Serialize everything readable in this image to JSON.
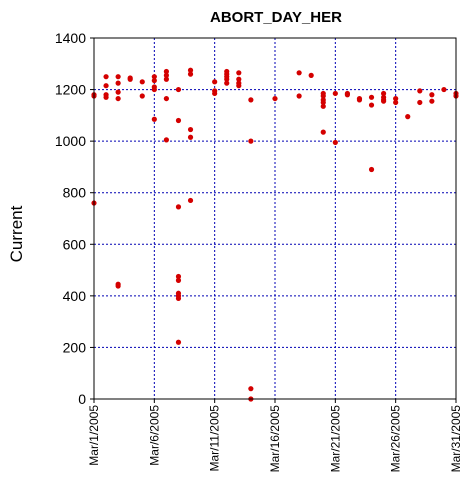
{
  "chart_data": {
    "type": "scatter",
    "title": "ABORT_DAY_HER",
    "xlabel": "",
    "ylabel": "Current",
    "ylim": [
      0,
      1400
    ],
    "yticks": [
      "0",
      "200",
      "400",
      "600",
      "800",
      "1000",
      "1200",
      "1400"
    ],
    "xlim": [
      "2005-03-01",
      "2005-03-31"
    ],
    "xticks": [
      "Mar/1/2005",
      "Mar/6/2005",
      "Mar/11/2005",
      "Mar/16/2005",
      "Mar/21/2005",
      "Mar/26/2005",
      "Mar/31/2005"
    ],
    "grid": true,
    "point_color": "#d40000",
    "grid_color": "#0000b4",
    "points": [
      {
        "x": "2005-03-01",
        "y": 760
      },
      {
        "x": "2005-03-01",
        "y": 1175
      },
      {
        "x": "2005-03-01",
        "y": 1180
      },
      {
        "x": "2005-03-02",
        "y": 1250
      },
      {
        "x": "2005-03-02",
        "y": 1215
      },
      {
        "x": "2005-03-02",
        "y": 1180
      },
      {
        "x": "2005-03-02",
        "y": 1170
      },
      {
        "x": "2005-03-03",
        "y": 1250
      },
      {
        "x": "2005-03-03",
        "y": 1225
      },
      {
        "x": "2005-03-03",
        "y": 1190
      },
      {
        "x": "2005-03-03",
        "y": 1165
      },
      {
        "x": "2005-03-03",
        "y": 445
      },
      {
        "x": "2005-03-03",
        "y": 438
      },
      {
        "x": "2005-03-04",
        "y": 1245
      },
      {
        "x": "2005-03-04",
        "y": 1240
      },
      {
        "x": "2005-03-05",
        "y": 1230
      },
      {
        "x": "2005-03-05",
        "y": 1175
      },
      {
        "x": "2005-03-06",
        "y": 1250
      },
      {
        "x": "2005-03-06",
        "y": 1235
      },
      {
        "x": "2005-03-06",
        "y": 1210
      },
      {
        "x": "2005-03-06",
        "y": 1200
      },
      {
        "x": "2005-03-06",
        "y": 1085
      },
      {
        "x": "2005-03-07",
        "y": 1270
      },
      {
        "x": "2005-03-07",
        "y": 1255
      },
      {
        "x": "2005-03-07",
        "y": 1240
      },
      {
        "x": "2005-03-07",
        "y": 1165
      },
      {
        "x": "2005-03-07",
        "y": 1005
      },
      {
        "x": "2005-03-08",
        "y": 1200
      },
      {
        "x": "2005-03-08",
        "y": 1080
      },
      {
        "x": "2005-03-08",
        "y": 745
      },
      {
        "x": "2005-03-08",
        "y": 475
      },
      {
        "x": "2005-03-08",
        "y": 460
      },
      {
        "x": "2005-03-08",
        "y": 410
      },
      {
        "x": "2005-03-08",
        "y": 400
      },
      {
        "x": "2005-03-08",
        "y": 390
      },
      {
        "x": "2005-03-08",
        "y": 220
      },
      {
        "x": "2005-03-09",
        "y": 1275
      },
      {
        "x": "2005-03-09",
        "y": 1260
      },
      {
        "x": "2005-03-09",
        "y": 1045
      },
      {
        "x": "2005-03-09",
        "y": 1015
      },
      {
        "x": "2005-03-09",
        "y": 770
      },
      {
        "x": "2005-03-11",
        "y": 1230
      },
      {
        "x": "2005-03-11",
        "y": 1195
      },
      {
        "x": "2005-03-11",
        "y": 1185
      },
      {
        "x": "2005-03-12",
        "y": 1270
      },
      {
        "x": "2005-03-12",
        "y": 1260
      },
      {
        "x": "2005-03-12",
        "y": 1250
      },
      {
        "x": "2005-03-12",
        "y": 1240
      },
      {
        "x": "2005-03-12",
        "y": 1225
      },
      {
        "x": "2005-03-13",
        "y": 1265
      },
      {
        "x": "2005-03-13",
        "y": 1240
      },
      {
        "x": "2005-03-13",
        "y": 1225
      },
      {
        "x": "2005-03-13",
        "y": 1215
      },
      {
        "x": "2005-03-14",
        "y": 1160
      },
      {
        "x": "2005-03-14",
        "y": 1000
      },
      {
        "x": "2005-03-14",
        "y": 40
      },
      {
        "x": "2005-03-14",
        "y": 0
      },
      {
        "x": "2005-03-16",
        "y": 1165
      },
      {
        "x": "2005-03-18",
        "y": 1265
      },
      {
        "x": "2005-03-18",
        "y": 1175
      },
      {
        "x": "2005-03-19",
        "y": 1255
      },
      {
        "x": "2005-03-20",
        "y": 1185
      },
      {
        "x": "2005-03-20",
        "y": 1175
      },
      {
        "x": "2005-03-20",
        "y": 1160
      },
      {
        "x": "2005-03-20",
        "y": 1150
      },
      {
        "x": "2005-03-20",
        "y": 1135
      },
      {
        "x": "2005-03-20",
        "y": 1035
      },
      {
        "x": "2005-03-21",
        "y": 1185
      },
      {
        "x": "2005-03-21",
        "y": 995
      },
      {
        "x": "2005-03-22",
        "y": 1185
      },
      {
        "x": "2005-03-22",
        "y": 1180
      },
      {
        "x": "2005-03-23",
        "y": 1165
      },
      {
        "x": "2005-03-23",
        "y": 1160
      },
      {
        "x": "2005-03-24",
        "y": 1170
      },
      {
        "x": "2005-03-24",
        "y": 1140
      },
      {
        "x": "2005-03-24",
        "y": 890
      },
      {
        "x": "2005-03-25",
        "y": 1185
      },
      {
        "x": "2005-03-25",
        "y": 1170
      },
      {
        "x": "2005-03-25",
        "y": 1160
      },
      {
        "x": "2005-03-25",
        "y": 1155
      },
      {
        "x": "2005-03-26",
        "y": 1165
      },
      {
        "x": "2005-03-26",
        "y": 1150
      },
      {
        "x": "2005-03-27",
        "y": 1095
      },
      {
        "x": "2005-03-28",
        "y": 1195
      },
      {
        "x": "2005-03-28",
        "y": 1150
      },
      {
        "x": "2005-03-29",
        "y": 1180
      },
      {
        "x": "2005-03-29",
        "y": 1155
      },
      {
        "x": "2005-03-30",
        "y": 1200
      },
      {
        "x": "2005-03-31",
        "y": 1185
      },
      {
        "x": "2005-03-31",
        "y": 1175
      }
    ]
  }
}
